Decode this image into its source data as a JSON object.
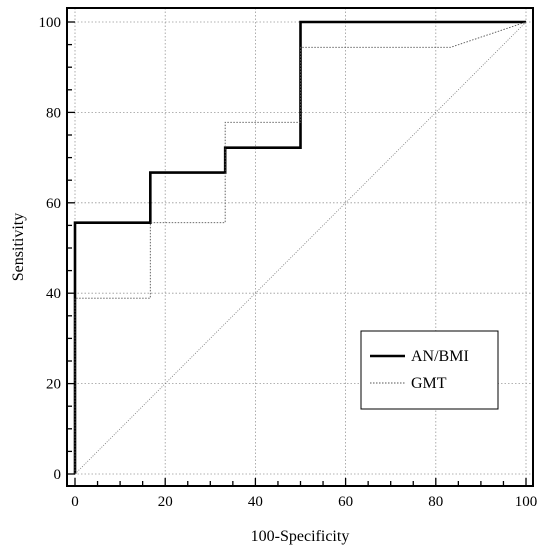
{
  "chart_data": {
    "type": "line",
    "title": "",
    "xlabel": "100-Specificity",
    "ylabel": "Sensitivity",
    "xlim": [
      0,
      100
    ],
    "ylim": [
      0,
      100
    ],
    "xticks": [
      "0",
      "20",
      "40",
      "60",
      "80",
      "100"
    ],
    "yticks": [
      "0",
      "20",
      "40",
      "60",
      "80",
      "100"
    ],
    "grid": true,
    "legend_position": "bottom-right",
    "series": [
      {
        "name": "AN/BMI",
        "style": "solid-thick",
        "color": "#000000",
        "x": [
          0,
          0,
          16.7,
          16.7,
          33.3,
          33.3,
          50,
          50,
          100
        ],
        "y": [
          0,
          55.6,
          55.6,
          66.7,
          66.7,
          72.2,
          72.2,
          100,
          100
        ]
      },
      {
        "name": "GMT",
        "style": "dotted-thin",
        "color": "#555555",
        "x": [
          0,
          0,
          16.7,
          16.7,
          33.3,
          33.3,
          50,
          50,
          83.3,
          100
        ],
        "y": [
          0,
          38.9,
          38.9,
          55.6,
          55.6,
          77.8,
          77.8,
          94.4,
          94.4,
          100
        ]
      },
      {
        "name": "",
        "style": "reference-diagonal",
        "color": "#777777",
        "x": [
          0,
          100
        ],
        "y": [
          0,
          100
        ]
      }
    ]
  }
}
